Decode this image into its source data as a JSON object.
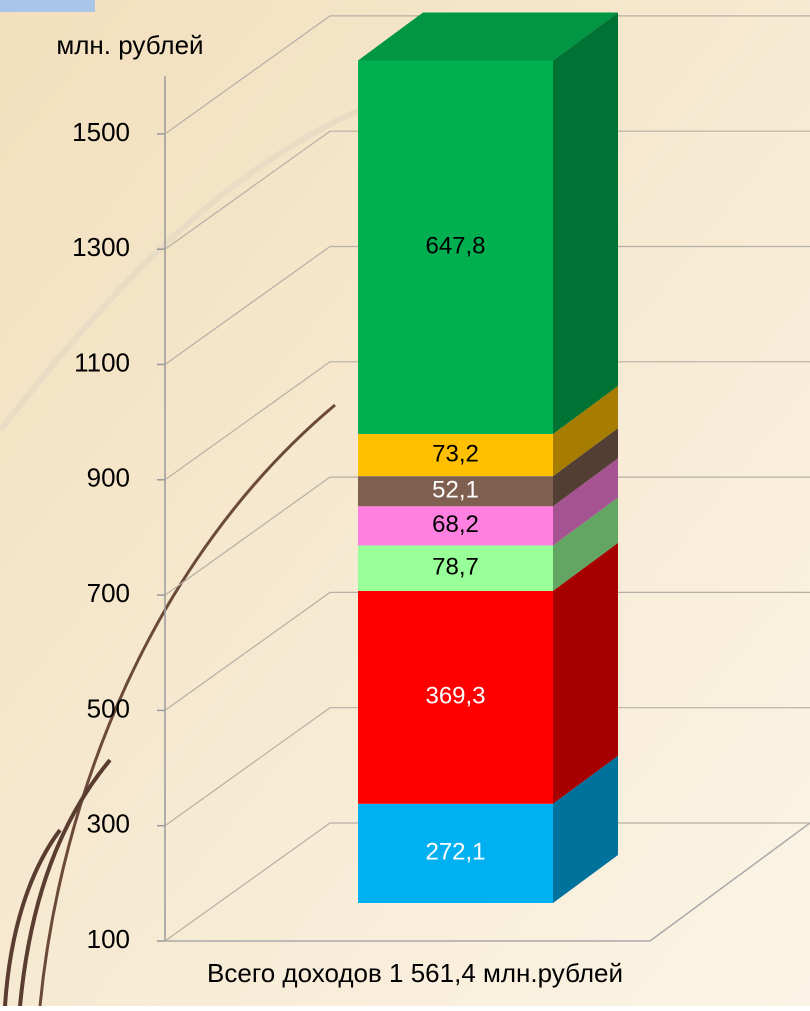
{
  "chart_data": {
    "type": "stacked_bar_3d",
    "ylabel": "млн. рублей",
    "xlabel": "Всего доходов 1 561,4 млн.рублей",
    "ylim": [
      100,
      1600
    ],
    "yticks": [
      100,
      300,
      500,
      700,
      900,
      1100,
      1300,
      1500
    ],
    "grid": true,
    "series": [
      {
        "color": "#00b0f0",
        "label_color": "#ffffff",
        "values": [
          272.1
        ],
        "value_labels": [
          "272,1"
        ]
      },
      {
        "color": "#ff0000",
        "label_color": "#ffffff",
        "values": [
          369.3
        ],
        "value_labels": [
          "369,3"
        ]
      },
      {
        "color": "#99ff99",
        "label_color": "#000000",
        "values": [
          78.7
        ],
        "value_labels": [
          "78,7"
        ]
      },
      {
        "color": "#ff80e0",
        "label_color": "#000000",
        "values": [
          68.2
        ],
        "value_labels": [
          "68,2"
        ]
      },
      {
        "color": "#7f6050",
        "label_color": "#ffffff",
        "values": [
          52.1
        ],
        "value_labels": [
          "52,1"
        ]
      },
      {
        "color": "#ffc000",
        "label_color": "#000000",
        "values": [
          73.2
        ],
        "value_labels": [
          "73,2"
        ]
      },
      {
        "color": "#00b050",
        "label_color": "#000000",
        "values": [
          647.8
        ],
        "value_labels": [
          "647,8"
        ]
      }
    ]
  }
}
